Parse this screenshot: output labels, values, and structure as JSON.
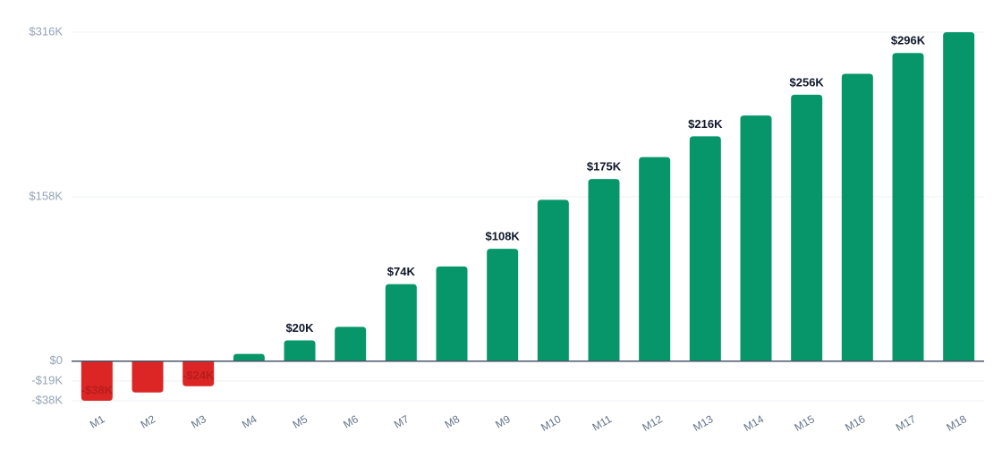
{
  "chart_data": {
    "type": "bar",
    "categories": [
      "M1",
      "M2",
      "M3",
      "M4",
      "M5",
      "M6",
      "M7",
      "M8",
      "M9",
      "M10",
      "M11",
      "M12",
      "M13",
      "M14",
      "M15",
      "M16",
      "M17",
      "M18"
    ],
    "values": [
      -38,
      -30,
      -24,
      7,
      20,
      33,
      74,
      91,
      108,
      155,
      175,
      196,
      216,
      236,
      256,
      276,
      296,
      316
    ],
    "value_labels": [
      "-$38K",
      null,
      "-$24K",
      null,
      "$20K",
      null,
      "$74K",
      null,
      "$108K",
      null,
      "$175K",
      null,
      "$216K",
      null,
      "$256K",
      null,
      "$296K",
      null
    ],
    "color": "#079669",
    "negative_color": "#dc2626",
    "ylim": [
      -38,
      316
    ],
    "yticks": [
      {
        "value": -38,
        "label": "-$38K"
      },
      {
        "value": -19,
        "label": "-$19K"
      },
      {
        "value": 0,
        "label": "$0"
      },
      {
        "value": 158,
        "label": "$158K"
      },
      {
        "value": 316,
        "label": "$316K"
      }
    ],
    "grid": true
  }
}
